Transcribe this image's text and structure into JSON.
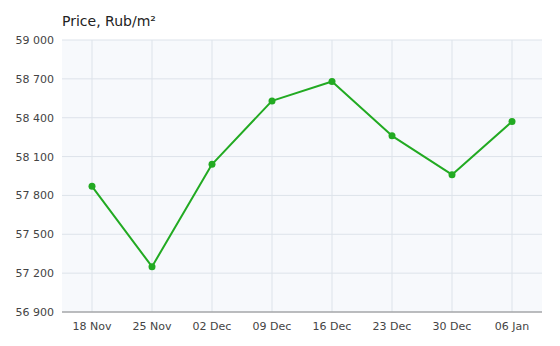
{
  "chart_data": {
    "type": "line",
    "title": "Price, Rub/m²",
    "categories": [
      "18 Nov",
      "25 Nov",
      "02 Dec",
      "09 Dec",
      "16 Dec",
      "23 Dec",
      "30 Dec",
      "06 Jan"
    ],
    "values": [
      57870,
      57250,
      58040,
      58530,
      58680,
      58260,
      57960,
      58370
    ],
    "color": "#22aa22",
    "marker": "circle",
    "ylim": [
      56900,
      59000
    ],
    "yticks": [
      {
        "value": 56900,
        "label": "56 900"
      },
      {
        "value": 57200,
        "label": "57 200"
      },
      {
        "value": 57500,
        "label": "57 500"
      },
      {
        "value": 57800,
        "label": "57 800"
      },
      {
        "value": 58100,
        "label": "58 100"
      },
      {
        "value": 58400,
        "label": "58 400"
      },
      {
        "value": 58700,
        "label": "58 700"
      },
      {
        "value": 59000,
        "label": "59 000"
      }
    ],
    "grid": true
  }
}
